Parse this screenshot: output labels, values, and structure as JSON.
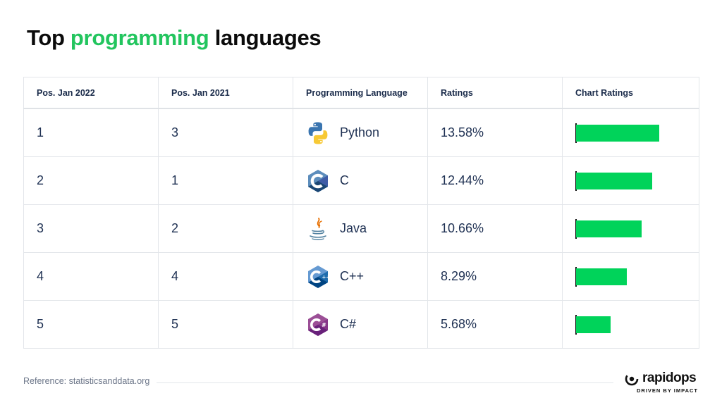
{
  "title": {
    "prefix": "Top ",
    "highlight": "programming",
    "suffix": " languages"
  },
  "columns": [
    "Pos. Jan 2022",
    "Pos. Jan 2021",
    "Programming Language",
    "Ratings",
    "Chart Ratings"
  ],
  "rows": [
    {
      "pos_2022": "1",
      "pos_2021": "3",
      "language": "Python",
      "rating": "13.58%",
      "icon": "python-icon"
    },
    {
      "pos_2022": "2",
      "pos_2021": "1",
      "language": "C",
      "rating": "12.44%",
      "icon": "c-icon"
    },
    {
      "pos_2022": "3",
      "pos_2021": "2",
      "language": "Java",
      "rating": "10.66%",
      "icon": "java-icon"
    },
    {
      "pos_2022": "4",
      "pos_2021": "4",
      "language": "C++",
      "rating": "8.29%",
      "icon": "cpp-icon"
    },
    {
      "pos_2022": "5",
      "pos_2021": "5",
      "language": "C#",
      "rating": "5.68%",
      "icon": "csharp-icon"
    }
  ],
  "chart_data": {
    "type": "bar",
    "orientation": "horizontal",
    "categories": [
      "Python",
      "C",
      "Java",
      "C++",
      "C#"
    ],
    "values": [
      13.58,
      12.44,
      10.66,
      8.29,
      5.68
    ],
    "unit": "%",
    "xlim": [
      0,
      13.58
    ]
  },
  "colors": {
    "accent": "#22c55e",
    "bar": "#00d35a",
    "text": "#1f3153",
    "border": "#e3e6ea"
  },
  "footer": {
    "reference": "Reference: statisticsanddata.org"
  },
  "logo": {
    "name": "rapidops",
    "tagline": "DRIVEN BY IMPACT"
  }
}
